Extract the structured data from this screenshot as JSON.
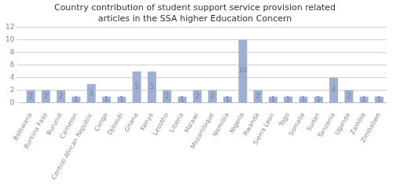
{
  "chart_data": {
    "type": "bar",
    "title": "Country contribution of student support service provision related\narticles in the SSA higher Education Concern",
    "categories": [
      "Botswana",
      "Burkina Faso",
      "Burundi",
      "Cameron",
      "Central African Republic",
      "Congo",
      "Djibouti",
      "Ghana",
      "Kenya",
      "Lesotho",
      "Liberia",
      "Malawi",
      "Mozambique",
      "Namibia",
      "Nigeria",
      "Rwanda",
      "Sierra Leon",
      "Togo",
      "Somalia",
      "Sudan",
      "Tanzania",
      "Uganda",
      "Zambia",
      "Zimbabwe"
    ],
    "values": [
      2,
      2,
      2,
      1,
      3,
      1,
      1,
      5,
      5,
      2,
      1,
      2,
      2,
      1,
      10,
      2,
      1,
      1,
      1,
      1,
      4,
      2,
      1,
      1
    ],
    "color": "#9fafd1",
    "ylim": [
      0,
      12
    ],
    "yticks": [
      0,
      2,
      4,
      6,
      8,
      10,
      12
    ],
    "grid": true,
    "data_labels": true
  }
}
